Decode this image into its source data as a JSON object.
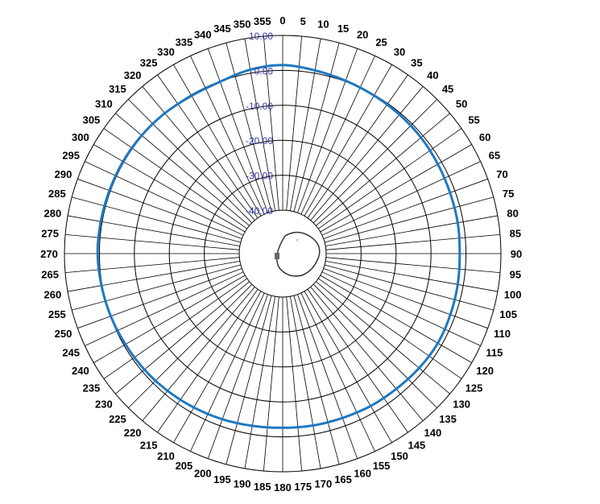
{
  "chart_data": {
    "type": "polar-line",
    "title": "",
    "angle_unit": "degrees",
    "angle_direction": "clockwise",
    "angle_zero": "top",
    "angle_ticks": [
      0,
      5,
      10,
      15,
      20,
      25,
      30,
      35,
      40,
      45,
      50,
      55,
      60,
      65,
      70,
      75,
      80,
      85,
      90,
      95,
      100,
      105,
      110,
      115,
      120,
      125,
      130,
      135,
      140,
      145,
      150,
      155,
      160,
      165,
      170,
      175,
      180,
      185,
      190,
      195,
      200,
      205,
      210,
      215,
      220,
      225,
      230,
      235,
      240,
      245,
      250,
      255,
      260,
      265,
      270,
      275,
      280,
      285,
      290,
      295,
      300,
      305,
      310,
      315,
      320,
      325,
      330,
      335,
      340,
      345,
      350,
      355
    ],
    "radial_range": [
      -45,
      10
    ],
    "radial_ticks": [
      10,
      0,
      -10,
      -20,
      -30,
      -40
    ],
    "radial_tick_labels": [
      "10.00",
      "0.00",
      "-10.00",
      "-20.00",
      "-30.00",
      "-40.00"
    ],
    "grid": true,
    "series": [
      {
        "color": "#1f78c1",
        "points": [
          [
            0,
            1.5
          ],
          [
            10,
            0.8
          ],
          [
            20,
            0.2
          ],
          [
            30,
            -0.2
          ],
          [
            40,
            -0.5
          ],
          [
            50,
            -0.8
          ],
          [
            60,
            -1.2
          ],
          [
            70,
            -1.5
          ],
          [
            80,
            -1.6
          ],
          [
            90,
            -1.8
          ],
          [
            100,
            -1.6
          ],
          [
            110,
            -1.4
          ],
          [
            120,
            -1.2
          ],
          [
            130,
            -1.5
          ],
          [
            140,
            -1.9
          ],
          [
            150,
            -2.1
          ],
          [
            160,
            -2.4
          ],
          [
            170,
            -2.5
          ],
          [
            180,
            -2.6
          ],
          [
            190,
            -2.4
          ],
          [
            200,
            -2.0
          ],
          [
            210,
            -1.6
          ],
          [
            220,
            -1.2
          ],
          [
            230,
            -0.8
          ],
          [
            240,
            -0.5
          ],
          [
            250,
            -0.1
          ],
          [
            260,
            0.2
          ],
          [
            270,
            0.5
          ],
          [
            280,
            0.4
          ],
          [
            290,
            0.3
          ],
          [
            300,
            0.3
          ],
          [
            310,
            0.2
          ],
          [
            320,
            0.0
          ],
          [
            330,
            -0.3
          ],
          [
            340,
            -0.1
          ],
          [
            350,
            1.0
          ],
          [
            360,
            1.5
          ]
        ]
      }
    ]
  }
}
